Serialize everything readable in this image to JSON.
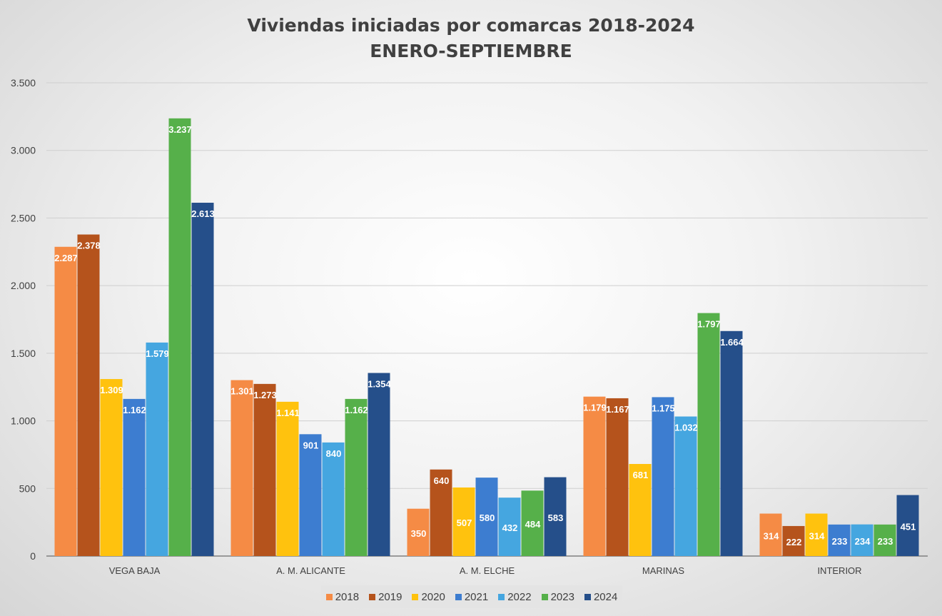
{
  "chart_data": {
    "type": "bar",
    "title": "Viviendas iniciadas por comarcas 2018-2024",
    "subtitle": "ENERO-SEPTIEMBRE",
    "categories": [
      "VEGA BAJA",
      "A. M. ALICANTE",
      "A. M. ELCHE",
      "MARINAS",
      "INTERIOR"
    ],
    "series": [
      {
        "name": "2018",
        "color": "#f58b45",
        "values": [
          2287,
          1301,
          350,
          1179,
          314
        ],
        "labels": [
          "2.287",
          "1.301",
          "350",
          "1.179",
          "314"
        ]
      },
      {
        "name": "2019",
        "color": "#b5531c",
        "values": [
          2378,
          1273,
          640,
          1167,
          222
        ],
        "labels": [
          "2.378",
          "1.273",
          "640",
          "1.167",
          "222"
        ]
      },
      {
        "name": "2020",
        "color": "#ffc20e",
        "values": [
          1309,
          1141,
          507,
          681,
          314
        ],
        "labels": [
          "1.309",
          "1.141",
          "507",
          "681",
          "314"
        ]
      },
      {
        "name": "2021",
        "color": "#3d7dd0",
        "values": [
          1162,
          901,
          580,
          1175,
          233
        ],
        "labels": [
          "1.162",
          "901",
          "580",
          "1.175",
          "233"
        ]
      },
      {
        "name": "2022",
        "color": "#45a6e0",
        "values": [
          1579,
          840,
          432,
          1032,
          234
        ],
        "labels": [
          "1.579",
          "840",
          "432",
          "1.032",
          "234"
        ]
      },
      {
        "name": "2023",
        "color": "#56b04a",
        "values": [
          3237,
          1162,
          484,
          1797,
          233
        ],
        "labels": [
          "3.237",
          "1.162",
          "484",
          "1.797",
          "233"
        ]
      },
      {
        "name": "2024",
        "color": "#254f8a",
        "values": [
          2613,
          1354,
          583,
          1664,
          451
        ],
        "labels": [
          "2.613",
          "1.354",
          "583",
          "1.664",
          "451"
        ]
      }
    ],
    "ylim": [
      0,
      3500
    ],
    "yticks": [
      0,
      500,
      1000,
      1500,
      2000,
      2500,
      3000,
      3500
    ],
    "ytick_labels": [
      "0",
      "500",
      "1.000",
      "1.500",
      "2.000",
      "2.500",
      "3.000",
      "3.500"
    ],
    "grid": true,
    "legend": "bottom"
  }
}
